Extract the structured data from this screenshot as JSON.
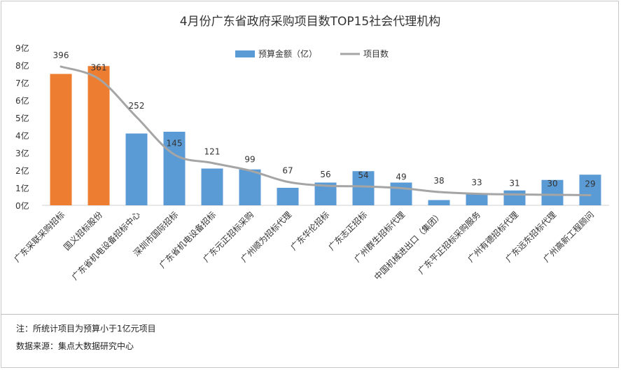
{
  "chart_data": {
    "type": "bar+line",
    "title": "4月份广东省政府采购项目数TOP15社会代理机构",
    "categories": [
      "广东采联采购招标",
      "国义招标股份",
      "广东省机电设备招标中心",
      "深圳市国际招标",
      "广东省机电设备招标",
      "广东元正招标采购",
      "广州顺为招标代理",
      "广东华伦招标",
      "广东志正招标",
      "广州群生招标代理",
      "中国机械进出口（集团）",
      "广东平正招标采购服务",
      "广州有德招标代理",
      "广东远东招标代理",
      "广州高新工程顾问"
    ],
    "series": [
      {
        "name": "预算金额（亿）",
        "kind": "bar",
        "axis": "left",
        "values": [
          7.5,
          7.95,
          4.1,
          4.2,
          2.1,
          2.05,
          1.0,
          1.3,
          1.95,
          1.3,
          0.3,
          0.65,
          0.85,
          1.45,
          1.75
        ],
        "colors": [
          "#ed7d31",
          "#ed7d31",
          "#5b9bd5",
          "#5b9bd5",
          "#5b9bd5",
          "#5b9bd5",
          "#5b9bd5",
          "#5b9bd5",
          "#5b9bd5",
          "#5b9bd5",
          "#5b9bd5",
          "#5b9bd5",
          "#5b9bd5",
          "#5b9bd5",
          "#5b9bd5"
        ]
      },
      {
        "name": "项目数",
        "kind": "line",
        "axis": "right",
        "color": "#a5a5a5",
        "values": [
          396,
          361,
          252,
          145,
          121,
          99,
          67,
          56,
          54,
          49,
          38,
          33,
          31,
          30,
          29
        ]
      }
    ],
    "y_left": {
      "ticks": [
        "0亿",
        "1亿",
        "2亿",
        "3亿",
        "4亿",
        "5亿",
        "6亿",
        "7亿",
        "8亿",
        "9亿"
      ],
      "range": [
        0,
        9
      ]
    },
    "y_right": {
      "range": [
        0,
        450
      ]
    },
    "legend": "top-center",
    "grid": false
  },
  "notes": {
    "note1": "注：所统计项目为预算小于1亿元项目",
    "note2": "数据来源：集点大数据研究中心"
  }
}
